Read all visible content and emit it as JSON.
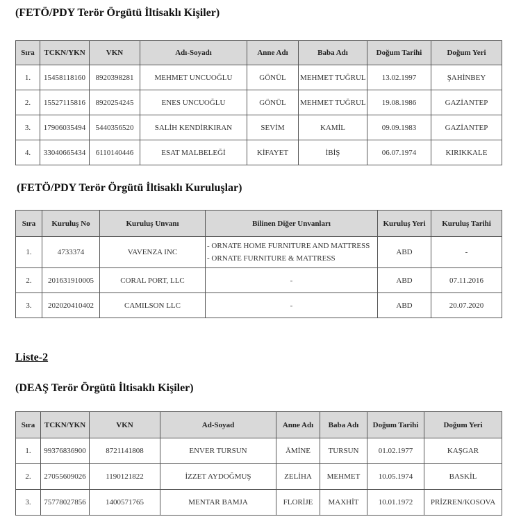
{
  "section1": {
    "title": "(FETÖ/PDY Terör Örgütü İltisaklı Kişiler)",
    "headers": [
      "Sıra",
      "TCKN/YKN",
      "VKN",
      "Adı-Soyadı",
      "Anne Adı",
      "Baba Adı",
      "Doğum Tarihi",
      "Doğum Yeri"
    ],
    "rows": [
      [
        "1.",
        "15458118160",
        "8920398281",
        "MEHMET UNCUOĞLU",
        "GÖNÜL",
        "MEHMET TUĞRUL",
        "13.02.1997",
        "ŞAHİNBEY"
      ],
      [
        "2.",
        "15527115816",
        "8920254245",
        "ENES UNCUOĞLU",
        "GÖNÜL",
        "MEHMET TUĞRUL",
        "19.08.1986",
        "GAZİANTEP"
      ],
      [
        "3.",
        "17906035494",
        "5440356520",
        "SALİH KENDİRKIRAN",
        "SEVİM",
        "KAMİL",
        "09.09.1983",
        "GAZİANTEP"
      ],
      [
        "4.",
        "33040665434",
        "6110140446",
        "ESAT MALBELEĞİ",
        "KİFAYET",
        "İBİŞ",
        "06.07.1974",
        "KIRIKKALE"
      ]
    ]
  },
  "section2": {
    "title": "(FETÖ/PDY Terör Örgütü İltisaklı Kuruluşlar)",
    "headers": [
      "Sıra",
      "Kuruluş No",
      "Kuruluş Unvanı",
      "Bilinen Diğer Unvanları",
      "Kuruluş Yeri",
      "Kuruluş Tarihi"
    ],
    "rows": [
      [
        "1.",
        "4733374",
        "VAVENZA INC",
        "- ORNATE HOME FURNITURE AND MATTRESS\n- ORNATE FURNITURE & MATTRESS",
        "ABD",
        "-"
      ],
      [
        "2.",
        "201631910005",
        "CORAL PORT, LLC",
        "-",
        "ABD",
        "07.11.2016"
      ],
      [
        "3.",
        "202020410402",
        "CAMILSON LLC",
        "-",
        "ABD",
        "20.07.2020"
      ]
    ]
  },
  "list2_label": "Liste-2",
  "section3": {
    "title": "(DEAŞ Terör Örgütü İltisaklı Kişiler)",
    "headers": [
      "Sıra",
      "TCKN/YKN",
      "VKN",
      "Ad-Soyad",
      "Anne Adı",
      "Baba Adı",
      "Doğum Tarihi",
      "Doğum Yeri"
    ],
    "rows": [
      [
        "1.",
        "99376836900",
        "8721141808",
        "ENVER TURSUN",
        "ÄMİNE",
        "TURSUN",
        "01.02.1977",
        "KAŞGAR"
      ],
      [
        "2.",
        "27055609026",
        "1190121822",
        "İZZET AYDOĞMUŞ",
        "ZELİHA",
        "MEHMET",
        "10.05.1974",
        "BASKİL"
      ],
      [
        "3.",
        "75778027856",
        "1400571765",
        "MENTAR BAMJA",
        "FLORİJE",
        "MAXHİT",
        "10.01.1972",
        "PRİZREN/KOSOVA"
      ]
    ]
  }
}
